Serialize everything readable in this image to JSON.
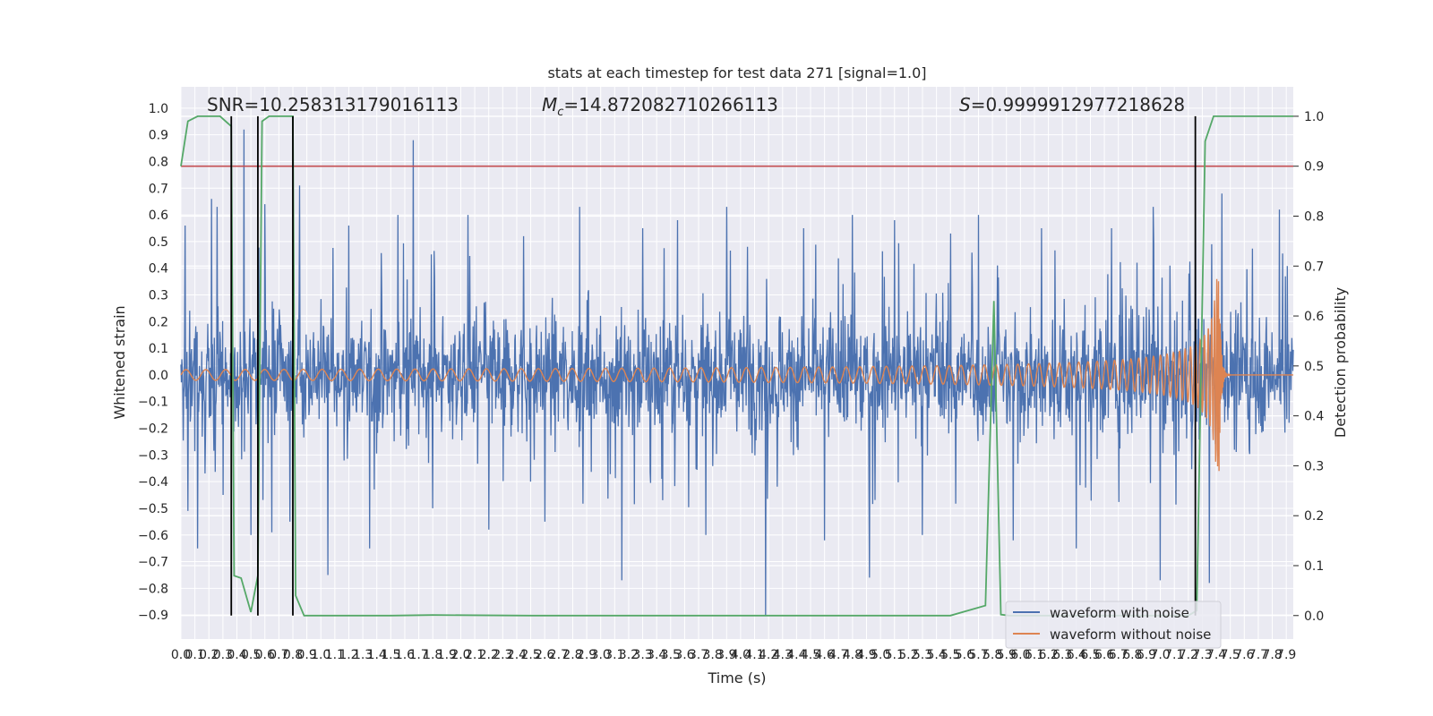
{
  "chart_data": {
    "type": "line",
    "title": "stats at each timestep for test data 271 [signal=1.0]",
    "xlabel": "Time (s)",
    "ylabel": "Whitened strain",
    "y2label": "Detection probability",
    "xlim": [
      0.0,
      7.95
    ],
    "ylim": [
      -0.99,
      1.08
    ],
    "y2lim": [
      -0.047,
      1.059
    ],
    "x_ticks": [
      "0.0",
      "0.1",
      "0.2",
      "0.3",
      "0.4",
      "0.5",
      "0.6",
      "0.7",
      "0.8",
      "0.9",
      "1.0",
      "1.1",
      "1.2",
      "1.3",
      "1.4",
      "1.5",
      "1.6",
      "1.7",
      "1.8",
      "1.9",
      "2.0",
      "2.1",
      "2.2",
      "2.3",
      "2.4",
      "2.5",
      "2.6",
      "2.7",
      "2.8",
      "2.9",
      "3.0",
      "3.1",
      "3.2",
      "3.3",
      "3.4",
      "3.5",
      "3.6",
      "3.7",
      "3.8",
      "3.9",
      "4.0",
      "4.1",
      "4.2",
      "4.3",
      "4.4",
      "4.5",
      "4.6",
      "4.7",
      "4.8",
      "4.9",
      "5.0",
      "5.1",
      "5.2",
      "5.3",
      "5.4",
      "5.5",
      "5.6",
      "5.7",
      "5.8",
      "5.9",
      "6.0",
      "6.1",
      "6.2",
      "6.3",
      "6.4",
      "6.5",
      "6.6",
      "6.7",
      "6.8",
      "6.9",
      "7.0",
      "7.1",
      "7.2",
      "7.3",
      "7.4",
      "7.5",
      "7.6",
      "7.7",
      "7.8",
      "7.9"
    ],
    "y_ticks": [
      "−0.9",
      "−0.8",
      "−0.7",
      "−0.6",
      "−0.5",
      "−0.4",
      "−0.3",
      "−0.2",
      "−0.1",
      "0.0",
      "0.1",
      "0.2",
      "0.3",
      "0.4",
      "0.5",
      "0.6",
      "0.7",
      "0.8",
      "0.9",
      "1.0"
    ],
    "y2_ticks": [
      "0.0",
      "0.1",
      "0.2",
      "0.3",
      "0.4",
      "0.5",
      "0.6",
      "0.7",
      "0.8",
      "0.9",
      "1.0"
    ],
    "annotations": {
      "snr": "SNR=10.258313179016113",
      "mc_symbol": "M",
      "mc_sub": "c",
      "mc_value": "=14.872082710266113",
      "s_symbol": "S",
      "s_value": "=0.9999912977218628"
    },
    "threshold": {
      "value": 0.9,
      "axis": "y2",
      "color": "#c44e52"
    },
    "detection_markers_x": [
      0.36,
      0.55,
      0.8,
      7.25
    ],
    "series": [
      {
        "name": "waveform with noise",
        "color": "#4c72b0",
        "axis": "y",
        "note_envelope": "dense noise, core band about ±0.24",
        "spikes": [
          [
            0.03,
            0.56
          ],
          [
            0.05,
            -0.51
          ],
          [
            0.12,
            -0.65
          ],
          [
            0.22,
            0.66
          ],
          [
            0.26,
            0.63
          ],
          [
            0.3,
            -0.45
          ],
          [
            0.45,
            0.92
          ],
          [
            0.5,
            -0.6
          ],
          [
            0.6,
            0.64
          ],
          [
            0.65,
            -0.59
          ],
          [
            0.78,
            -0.55
          ],
          [
            0.85,
            0.71
          ],
          [
            1.05,
            -0.75
          ],
          [
            1.2,
            0.56
          ],
          [
            1.35,
            -0.65
          ],
          [
            1.55,
            0.6
          ],
          [
            1.66,
            0.88
          ],
          [
            1.8,
            -0.5
          ],
          [
            2.05,
            0.6
          ],
          [
            2.2,
            -0.58
          ],
          [
            2.45,
            0.52
          ],
          [
            2.6,
            -0.55
          ],
          [
            2.85,
            0.63
          ],
          [
            3.15,
            -0.77
          ],
          [
            3.3,
            0.55
          ],
          [
            3.55,
            0.58
          ],
          [
            3.75,
            -0.6
          ],
          [
            3.9,
            0.63
          ],
          [
            4.05,
            0.48
          ],
          [
            4.18,
            -0.9
          ],
          [
            4.45,
            0.55
          ],
          [
            4.6,
            -0.62
          ],
          [
            4.8,
            0.6
          ],
          [
            4.92,
            -0.76
          ],
          [
            5.1,
            0.58
          ],
          [
            5.3,
            -0.6
          ],
          [
            5.5,
            0.53
          ],
          [
            5.7,
            0.6
          ],
          [
            5.95,
            -0.62
          ],
          [
            6.15,
            0.55
          ],
          [
            6.4,
            -0.65
          ],
          [
            6.65,
            0.55
          ],
          [
            6.95,
            0.63
          ],
          [
            7.0,
            -0.77
          ],
          [
            7.25,
            0.76
          ],
          [
            7.35,
            -0.78
          ],
          [
            7.44,
            0.68
          ],
          [
            7.85,
            0.62
          ]
        ]
      },
      {
        "name": "waveform without noise",
        "color": "#dd8452",
        "axis": "y",
        "chirp": {
          "merger_time": 7.42,
          "ringdown_end": 7.5,
          "peak_amplitude": 0.36,
          "min_peak": -0.31
        }
      },
      {
        "name": "",
        "color": "#55a868",
        "axis": "y2",
        "x": [
          0.0,
          0.05,
          0.12,
          0.28,
          0.36,
          0.38,
          0.43,
          0.5,
          0.55,
          0.58,
          0.63,
          0.8,
          0.82,
          0.88,
          1.5,
          1.8,
          2.5,
          5.5,
          5.75,
          5.81,
          5.86,
          5.92,
          6.5,
          7.2,
          7.26,
          7.32,
          7.38,
          7.5,
          7.95
        ],
        "y": [
          0.9,
          0.99,
          1.0,
          1.0,
          0.98,
          0.08,
          0.075,
          0.007,
          0.08,
          0.99,
          1.0,
          1.0,
          0.04,
          0.0,
          0.0,
          0.001,
          0.0,
          0.0,
          0.02,
          0.63,
          0.002,
          0.0,
          0.0,
          0.0,
          0.01,
          0.95,
          1.0,
          1.0,
          1.0
        ]
      }
    ],
    "legend": {
      "position": "bottom-right",
      "entries": [
        "waveform with noise",
        "waveform without noise"
      ]
    },
    "grid": true
  }
}
